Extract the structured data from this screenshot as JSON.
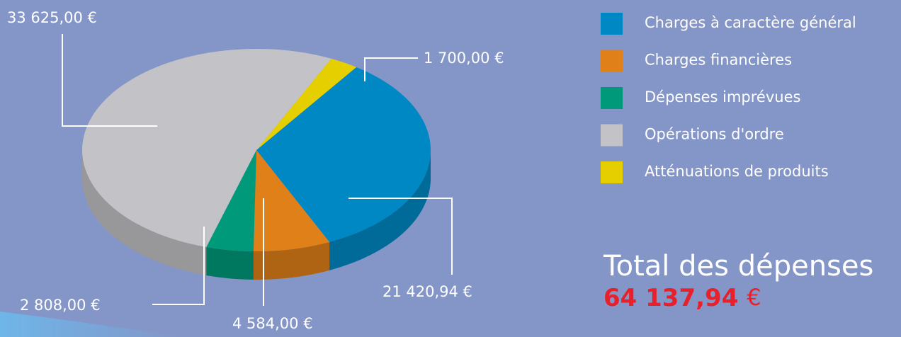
{
  "chart_data": {
    "type": "pie",
    "categories": [
      "Charges à caractère général",
      "Charges financières",
      "Dépenses imprévues",
      "Opérations d'ordre",
      "Atténuations de produits"
    ],
    "values": [
      21420.94,
      4584,
      2808,
      33625,
      1700
    ],
    "value_labels": [
      "21 420,94 €",
      "4 584,00 €",
      "2 808,00 €",
      "33 625,00 €",
      "1 700,00 €"
    ],
    "colors": [
      "#0088c4",
      "#e08019",
      "#00997a",
      "#c3c3c7",
      "#e6cf00"
    ],
    "legend": "right",
    "total": {
      "label": "Total des dépenses",
      "value": 64137.94,
      "value_label": "64 137,94 €"
    }
  }
}
